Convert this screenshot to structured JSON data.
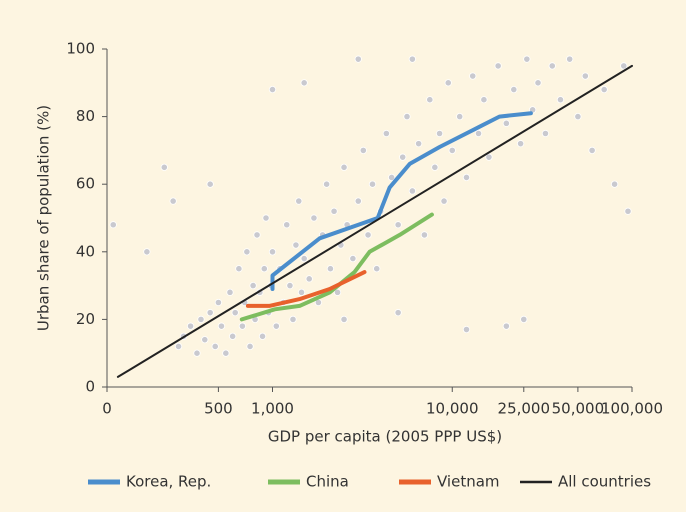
{
  "chart_data": {
    "type": "scatter",
    "xlabel": "GDP per capita (2005 PPP US$)",
    "ylabel": "Urban share of population (%)",
    "xscale": "log",
    "xlim": [
      120,
      100000
    ],
    "ylim": [
      0,
      100
    ],
    "xticks": [
      {
        "value": 0,
        "label": "0"
      },
      500,
      {
        "value": 1000,
        "label": "1,000"
      },
      {
        "value": 10000,
        "label": "10,000"
      },
      {
        "value": 25000,
        "label": "25,000"
      },
      {
        "value": 50000,
        "label": "50,000"
      },
      {
        "value": 100000,
        "label": "100,000"
      }
    ],
    "yticks": [
      0,
      20,
      40,
      60,
      80,
      100
    ],
    "legend": "bottom",
    "points": {
      "color": "#c9c9cf",
      "x": [
        300,
        320,
        350,
        380,
        400,
        420,
        450,
        480,
        500,
        520,
        550,
        580,
        600,
        620,
        650,
        680,
        700,
        720,
        750,
        780,
        800,
        820,
        850,
        880,
        900,
        920,
        950,
        980,
        1000,
        1050,
        1100,
        1150,
        1200,
        1250,
        1300,
        1350,
        1400,
        1450,
        1500,
        1600,
        1700,
        1800,
        1900,
        2000,
        2100,
        2200,
        2300,
        2400,
        2500,
        2600,
        2800,
        3000,
        3200,
        3400,
        3600,
        3800,
        4000,
        4300,
        4600,
        5000,
        5300,
        5600,
        6000,
        6500,
        7000,
        7500,
        8000,
        8500,
        9000,
        9500,
        10000,
        11000,
        12000,
        13000,
        14000,
        15000,
        16000,
        18000,
        20000,
        22000,
        24000,
        26000,
        28000,
        30000,
        33000,
        36000,
        40000,
        45000,
        50000,
        55000,
        60000,
        70000,
        80000,
        90000,
        95000,
        130,
        200,
        250,
        280,
        450,
        1000,
        1500,
        2500,
        5000,
        12000,
        20000,
        25000,
        3000,
        6000
      ],
      "y": [
        12,
        15,
        18,
        10,
        20,
        14,
        22,
        12,
        25,
        18,
        10,
        28,
        15,
        22,
        35,
        18,
        25,
        40,
        12,
        30,
        20,
        45,
        28,
        15,
        35,
        50,
        22,
        30,
        40,
        18,
        35,
        25,
        48,
        30,
        20,
        42,
        55,
        28,
        38,
        32,
        50,
        25,
        45,
        60,
        35,
        52,
        28,
        42,
        65,
        48,
        38,
        55,
        70,
        45,
        60,
        35,
        52,
        75,
        62,
        48,
        68,
        80,
        58,
        72,
        45,
        85,
        65,
        75,
        55,
        90,
        70,
        80,
        62,
        92,
        75,
        85,
        68,
        95,
        78,
        88,
        72,
        97,
        82,
        90,
        75,
        95,
        85,
        97,
        80,
        92,
        70,
        88,
        60,
        95,
        52,
        48,
        40,
        65,
        55,
        60,
        88,
        90,
        20,
        22,
        17,
        18,
        20,
        97,
        97
      ]
    },
    "series": [
      {
        "name": "Korea, Rep.",
        "color": "#4a8dcc",
        "x": [
          1000,
          1000,
          1830,
          3850,
          4480,
          5800,
          8500,
          14200,
          18300,
          27400
        ],
        "values": [
          29,
          33,
          44,
          50,
          59,
          66,
          71,
          77,
          80,
          81
        ]
      },
      {
        "name": "China",
        "color": "#7dbd5f",
        "x": [
          675,
          1030,
          1415,
          2080,
          2860,
          3470,
          5100,
          7700
        ],
        "values": [
          20,
          23,
          24,
          28,
          34,
          40,
          45,
          51
        ]
      },
      {
        "name": "Vietnam",
        "color": "#e8612c",
        "x": [
          730,
          960,
          1415,
          2080,
          3250
        ],
        "values": [
          24,
          24,
          26,
          29,
          34
        ]
      },
      {
        "name": "All countries",
        "color": "#222222",
        "x": [
          138,
          100000
        ],
        "values": [
          3,
          95
        ]
      }
    ]
  }
}
